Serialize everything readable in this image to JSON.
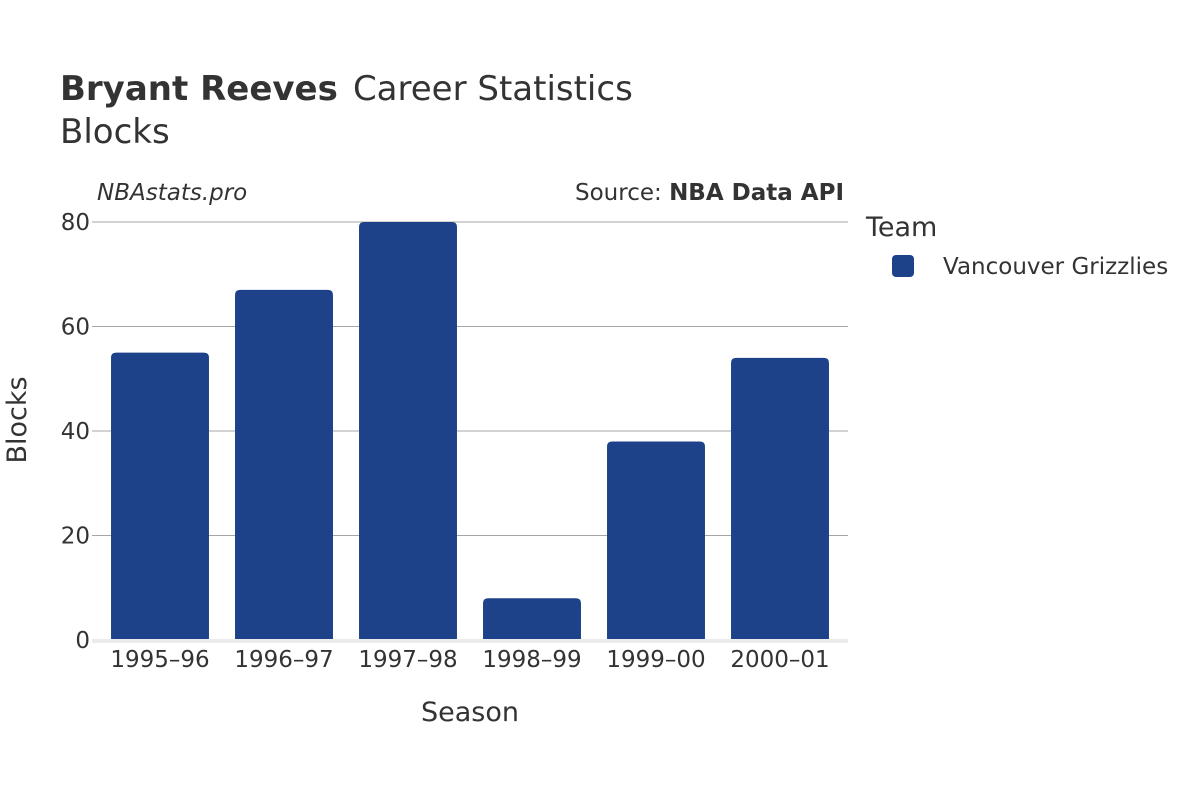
{
  "header": {
    "title_bold": "Bryant Reeves",
    "title_rest": "Career Statistics",
    "subtitle": "Blocks"
  },
  "watermark": "NBAstats.pro",
  "source": {
    "prefix": "Source: ",
    "name": "NBA Data API"
  },
  "legend": {
    "title": "Team",
    "items": [
      {
        "label": "Vancouver Grizzlies",
        "color": "#1d428a"
      }
    ]
  },
  "chart_data": {
    "type": "bar",
    "title": "Bryant Reeves Career Statistics",
    "subtitle": "Blocks",
    "xlabel": "Season",
    "ylabel": "Blocks",
    "categories": [
      "1995–96",
      "1996–97",
      "1997–98",
      "1998–99",
      "1999–00",
      "2000–01"
    ],
    "series": [
      {
        "name": "Vancouver Grizzlies",
        "color": "#1d428a",
        "values": [
          55,
          67,
          80,
          8,
          38,
          54
        ]
      }
    ],
    "ylim": [
      0,
      80
    ],
    "yticks": [
      0,
      20,
      40,
      60,
      80
    ],
    "grid": true,
    "legend_position": "right"
  }
}
